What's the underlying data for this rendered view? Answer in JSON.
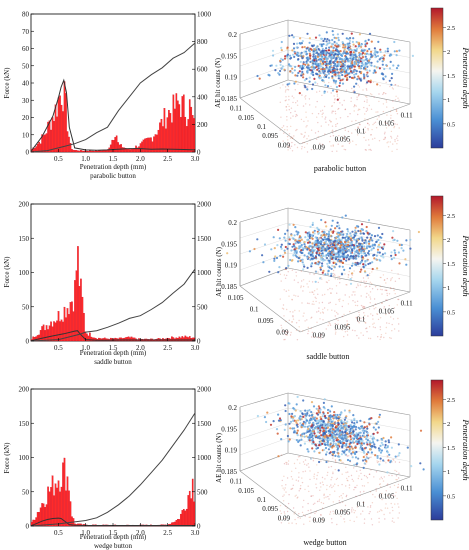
{
  "chart_data": [
    {
      "id": "parabolic-2d",
      "type": "bar",
      "caption": "parabolic button",
      "xlabel": "Penetration depth (mm)",
      "ylabel_left": "Force (kN)",
      "ylabel_right": "AE hit counts (N)",
      "xlim": [
        0,
        3.0
      ],
      "xticks": [
        "0.5",
        "1.0",
        "1.5",
        "2.0",
        "2.5",
        "3.0"
      ],
      "ylim_left": [
        0,
        1000
      ],
      "yticks_left": [
        "0",
        "10",
        "20",
        "30",
        "40",
        "50",
        "60",
        "70",
        "80"
      ],
      "ylim_right": [
        0,
        1000
      ],
      "yticks_right": [
        "0",
        "200",
        "400",
        "600",
        "800",
        "1000"
      ],
      "hit_bars": [
        {
          "x": [
            0.0,
            0.08,
            0.16,
            0.24,
            0.3,
            0.36,
            0.42,
            0.48,
            0.52,
            0.56,
            0.6,
            0.64,
            0.68,
            0.72,
            0.76,
            0.8,
            1.0,
            1.2,
            1.4,
            1.5,
            1.55,
            1.6,
            1.8,
            2.0,
            2.2,
            2.3,
            2.4,
            2.5,
            2.6,
            2.7,
            2.8,
            2.85,
            2.9,
            2.95,
            3.0
          ],
          "y": [
            20,
            50,
            90,
            140,
            200,
            260,
            320,
            400,
            470,
            520,
            500,
            380,
            180,
            60,
            20,
            15,
            10,
            10,
            15,
            120,
            200,
            60,
            20,
            60,
            120,
            180,
            250,
            330,
            360,
            420,
            380,
            330,
            400,
            300,
            200
          ]
        }
      ],
      "force_curve": {
        "x": [
          0.0,
          0.2,
          0.4,
          0.5,
          0.55,
          0.6,
          0.65,
          0.7,
          0.8,
          1.0,
          1.2,
          1.4,
          1.6,
          1.8,
          2.0,
          2.2,
          2.4,
          2.6,
          2.8,
          3.0
        ],
        "y": [
          5,
          110,
          260,
          390,
          470,
          520,
          430,
          180,
          30,
          15,
          12,
          15,
          20,
          25,
          25,
          20,
          22,
          20,
          18,
          15
        ]
      },
      "cumulative_hits": {
        "x": [
          0.0,
          0.3,
          0.6,
          0.8,
          1.0,
          1.2,
          1.4,
          1.6,
          1.8,
          2.0,
          2.2,
          2.4,
          2.6,
          2.8,
          3.0
        ],
        "y": [
          0,
          10,
          40,
          60,
          90,
          140,
          180,
          300,
          400,
          500,
          560,
          610,
          680,
          720,
          790
        ]
      }
    },
    {
      "id": "parabolic-3d",
      "type": "scatter",
      "caption": "parabolic button",
      "zticks": [
        "0.185",
        "0.19",
        "0.195",
        "0.2"
      ],
      "xticks": [
        "0.09",
        "0.095",
        "0.1",
        "0.105",
        "0.11"
      ],
      "yticks": [
        "0.09",
        "0.095",
        "0.1",
        "0.105",
        "0.11"
      ],
      "colorbar_label": "Penetration depth",
      "colorbar_ticks": [
        "0.5",
        "1",
        "1.5",
        "2",
        "2.5"
      ]
    },
    {
      "id": "saddle-2d",
      "type": "bar",
      "caption": "saddle button",
      "xlabel": "Penetration depth (mm)",
      "ylabel_left": "Force (kN)",
      "ylabel_right": "AE hit counts (N)",
      "xlim": [
        0,
        3.0
      ],
      "xticks": [
        "0.5",
        "1.0",
        "1.5",
        "2.0",
        "2.5",
        "3.0"
      ],
      "ylim_left": [
        0,
        200
      ],
      "yticks_left": [
        "0",
        "50",
        "100",
        "150",
        "200"
      ],
      "ylim_right": [
        0,
        2000
      ],
      "yticks_right": [
        "0",
        "500",
        "1000",
        "1500",
        "2000"
      ],
      "hit_bars": [
        {
          "x": [
            0.0,
            0.1,
            0.2,
            0.3,
            0.4,
            0.5,
            0.6,
            0.7,
            0.75,
            0.8,
            0.85,
            0.9,
            0.95,
            1.0,
            1.2,
            1.4,
            1.6,
            1.8,
            2.0,
            2.2,
            2.4,
            2.6,
            2.8,
            3.0
          ],
          "y": [
            20,
            120,
            200,
            280,
            360,
            420,
            520,
            640,
            720,
            820,
            1500,
            900,
            600,
            150,
            50,
            40,
            40,
            60,
            30,
            30,
            40,
            60,
            70,
            60
          ]
        }
      ],
      "force_curve": {
        "x": [
          0.0,
          0.2,
          0.4,
          0.6,
          0.8,
          0.85,
          0.9,
          1.0,
          1.2,
          1.4,
          1.6,
          1.8,
          2.0,
          2.2,
          2.4,
          2.6,
          2.8,
          3.0
        ],
        "y": [
          5,
          40,
          75,
          105,
          145,
          150,
          100,
          20,
          12,
          12,
          15,
          15,
          15,
          15,
          15,
          15,
          15,
          15
        ]
      },
      "cumulative_hits": {
        "x": [
          0.0,
          0.5,
          0.9,
          1.0,
          1.2,
          1.4,
          1.6,
          1.8,
          2.0,
          2.2,
          2.4,
          2.6,
          2.8,
          3.0
        ],
        "y": [
          0,
          20,
          100,
          130,
          150,
          200,
          260,
          330,
          370,
          460,
          560,
          700,
          830,
          1050
        ]
      }
    },
    {
      "id": "saddle-3d",
      "type": "scatter",
      "caption": "saddle button",
      "zticks": [
        "0.185",
        "0.19",
        "0.195",
        "0.2"
      ],
      "xticks": [
        "0.09",
        "0.095",
        "0.1",
        "0.105",
        "0.11"
      ],
      "yticks": [
        "0.09",
        "0.095",
        "0.1",
        "0.105"
      ],
      "colorbar_label": "Penetration depth",
      "colorbar_ticks": [
        "0.5",
        "1",
        "1.5",
        "2",
        "2.5"
      ]
    },
    {
      "id": "wedge-2d",
      "type": "bar",
      "caption": "wedge button",
      "xlabel": "Penetration depth (mm)",
      "ylabel_left": "Force (kN)",
      "ylabel_right": "AE hit counts (N)",
      "xlim": [
        0,
        3.0
      ],
      "xticks": [
        "0.5",
        "1.0",
        "1.5",
        "2.0",
        "2.5",
        "3.0"
      ],
      "ylim_left": [
        0,
        200
      ],
      "yticks_left": [
        "0",
        "50",
        "100",
        "150",
        "200"
      ],
      "ylim_right": [
        0,
        2000
      ],
      "yticks_right": [
        "0",
        "500",
        "1000",
        "1500",
        "2000"
      ],
      "hit_bars": [
        {
          "x": [
            0.0,
            0.1,
            0.2,
            0.3,
            0.4,
            0.45,
            0.5,
            0.55,
            0.6,
            0.65,
            0.7,
            0.75,
            0.8,
            1.0,
            1.5,
            2.0,
            2.5,
            2.7,
            2.8,
            2.9,
            2.95,
            3.0
          ],
          "y": [
            30,
            200,
            380,
            560,
            680,
            780,
            840,
            900,
            950,
            900,
            700,
            200,
            40,
            20,
            15,
            15,
            20,
            120,
            300,
            600,
            800,
            500
          ]
        }
      ],
      "force_curve": {
        "x": [
          0.0,
          0.1,
          0.2,
          0.3,
          0.4,
          0.5,
          0.55,
          0.6,
          0.7,
          0.8,
          1.0,
          1.5,
          2.0,
          2.5,
          3.0
        ],
        "y": [
          5,
          35,
          70,
          95,
          110,
          115,
          110,
          80,
          20,
          10,
          8,
          8,
          8,
          8,
          8
        ]
      },
      "cumulative_hits": {
        "x": [
          0.0,
          0.5,
          0.8,
          1.0,
          1.2,
          1.4,
          1.6,
          1.8,
          2.0,
          2.2,
          2.4,
          2.6,
          2.8,
          3.0
        ],
        "y": [
          0,
          30,
          60,
          80,
          120,
          200,
          310,
          440,
          600,
          780,
          960,
          1180,
          1400,
          1650
        ]
      }
    },
    {
      "id": "wedge-3d",
      "type": "scatter",
      "caption": "wedge button",
      "zticks": [
        "0.185",
        "0.19",
        "0.195",
        "0.2"
      ],
      "xticks": [
        "0.09",
        "0.095",
        "0.1",
        "0.105",
        "0.11"
      ],
      "yticks": [
        "0.09",
        "0.095",
        "0.1",
        "0.105",
        "0.11"
      ],
      "colorbar_label": "Penetration depth",
      "colorbar_ticks": [
        "0.5",
        "1",
        "1.5",
        "2",
        "2.5"
      ]
    }
  ],
  "colors": {
    "bars": "#ff2a2a",
    "bars_edge": "#c4001a",
    "line": "#444444",
    "colormap": [
      "#2b3c9a",
      "#4a8fd4",
      "#a6d6ee",
      "#f5f5f0",
      "#f2d78a",
      "#e07a3b",
      "#b2182b"
    ]
  }
}
